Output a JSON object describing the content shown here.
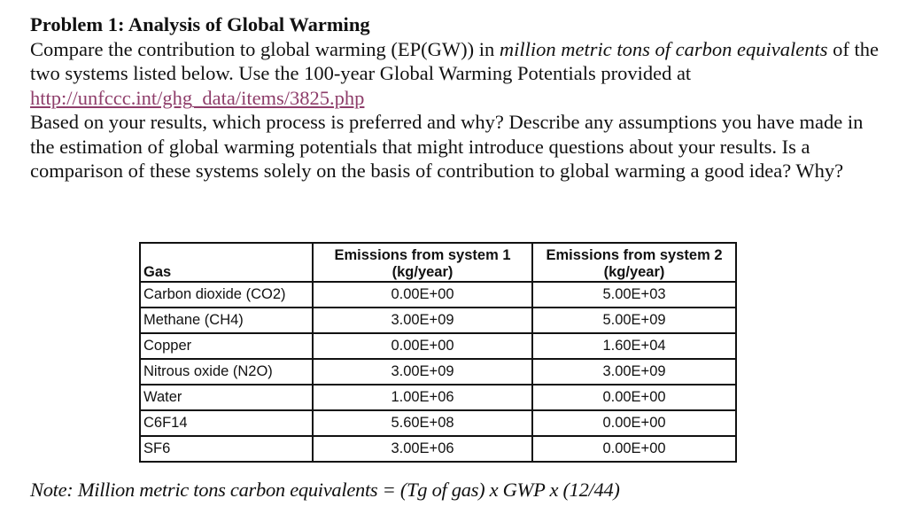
{
  "problem": {
    "title": "Problem 1: Analysis of Global Warming",
    "intro_part1": "Compare the contribution to global warming (EP(GW)) in ",
    "intro_italic1": "million metric tons of carbon equivalents",
    "intro_part2": " of the two systems listed below. Use the 100-year Global Warming Potentials provided at",
    "link_text": "http://unfccc.int/ghg_data/items/3825.php",
    "question": "Based on your results, which process is preferred and why? Describe any assumptions you have made in the estimation of global warming potentials that might introduce questions about your results. Is a comparison of these systems solely on the basis of contribution to global warming a good idea? Why?"
  },
  "table": {
    "headers": [
      "Gas",
      "Emissions from system 1 (kg/year)",
      "Emissions from system 2 (kg/year)"
    ],
    "rows": [
      {
        "gas": "Carbon dioxide (CO2)",
        "system1": "0.00E+00",
        "system2": "5.00E+03"
      },
      {
        "gas": "Methane (CH4)",
        "system1": "3.00E+09",
        "system2": "5.00E+09"
      },
      {
        "gas": "Copper",
        "system1": "0.00E+00",
        "system2": "1.60E+04"
      },
      {
        "gas": "Nitrous oxide (N2O)",
        "system1": "3.00E+09",
        "system2": "3.00E+09"
      },
      {
        "gas": "Water",
        "system1": "1.00E+06",
        "system2": "0.00E+00"
      },
      {
        "gas": "C6F14",
        "system1": "5.60E+08",
        "system2": "0.00E+00"
      },
      {
        "gas": "SF6",
        "system1": "3.00E+06",
        "system2": "0.00E+00"
      }
    ]
  },
  "note": "Note: Million metric tons carbon equivalents = (Tg of gas) x GWP x (12/44)",
  "colors": {
    "link": "#8e3d6a",
    "text": "#111111",
    "border": "#111111"
  }
}
